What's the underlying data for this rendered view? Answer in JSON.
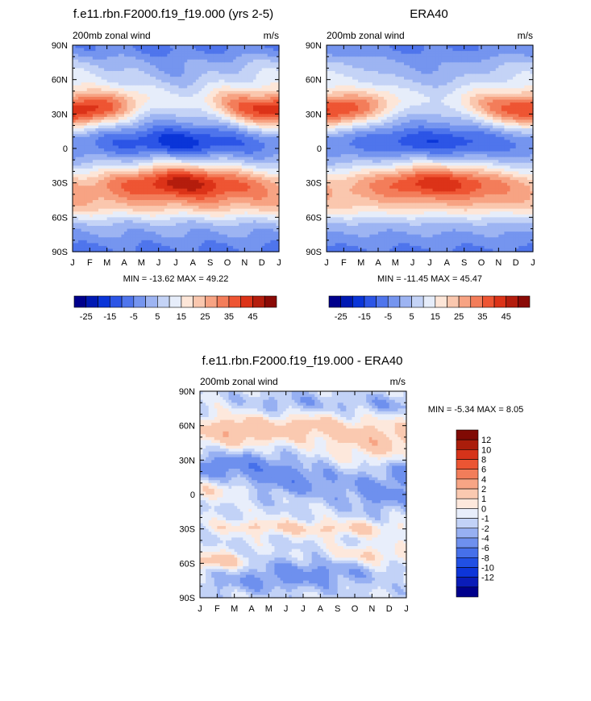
{
  "chart_data": [
    {
      "type": "heatmap",
      "title": "f.e11.rbn.F2000.f19_f19.000 (yrs 2-5)",
      "left_label": "200mb zonal wind",
      "right_label": "m/s",
      "x_ticks": [
        "J",
        "F",
        "M",
        "A",
        "M",
        "J",
        "J",
        "A",
        "S",
        "O",
        "N",
        "D",
        "J"
      ],
      "y_ticks": [
        "90N",
        "60N",
        "30N",
        "0",
        "30S",
        "60S",
        "90S"
      ],
      "stats_text": "MIN = -13.62 MAX =  49.22",
      "min": -13.62,
      "max": 49.22,
      "colorbar": {
        "orientation": "horizontal",
        "labels": [
          "-25",
          "-15",
          "-5",
          "5",
          "15",
          "25",
          "35",
          "45"
        ],
        "levels": [
          -30,
          -25,
          -20,
          -15,
          -10,
          -5,
          0,
          5,
          10,
          15,
          20,
          25,
          30,
          35,
          40,
          45,
          50
        ]
      },
      "features": [
        {
          "month": 0.5,
          "lat": 32,
          "value": 44
        },
        {
          "month": 11.5,
          "lat": 32,
          "value": 44
        },
        {
          "month": 6.5,
          "lat": -30,
          "value": 48
        },
        {
          "month": 6,
          "lat": 7,
          "value": -13
        },
        {
          "month": 6,
          "lat": 62,
          "value": 0
        }
      ]
    },
    {
      "type": "heatmap",
      "title": "ERA40",
      "left_label": "200mb zonal wind",
      "right_label": "m/s",
      "x_ticks": [
        "J",
        "F",
        "M",
        "A",
        "M",
        "J",
        "J",
        "A",
        "S",
        "O",
        "N",
        "D",
        "J"
      ],
      "y_ticks": [
        "90N",
        "60N",
        "30N",
        "0",
        "30S",
        "60S",
        "90S"
      ],
      "stats_text": "MIN = -11.45 MAX =  45.47",
      "min": -11.45,
      "max": 45.47,
      "colorbar": {
        "orientation": "horizontal",
        "labels": [
          "-25",
          "-15",
          "-5",
          "5",
          "15",
          "25",
          "35",
          "45"
        ],
        "levels": [
          -30,
          -25,
          -20,
          -15,
          -10,
          -5,
          0,
          5,
          10,
          15,
          20,
          25,
          30,
          35,
          40,
          45,
          50
        ]
      }
    },
    {
      "type": "heatmap",
      "title": "f.e11.rbn.F2000.f19_f19.000 - ERA40",
      "left_label": "200mb zonal wind",
      "right_label": "m/s",
      "x_ticks": [
        "J",
        "F",
        "M",
        "A",
        "M",
        "J",
        "J",
        "A",
        "S",
        "O",
        "N",
        "D",
        "J"
      ],
      "y_ticks": [
        "90N",
        "60N",
        "30N",
        "0",
        "30S",
        "60S",
        "90S"
      ],
      "stats_text": "MIN =  -5.34 MAX =   8.05",
      "min": -5.34,
      "max": 8.05,
      "colorbar": {
        "orientation": "vertical",
        "labels": [
          "12",
          "10",
          "8",
          "6",
          "4",
          "2",
          "1",
          "0",
          "-1",
          "-2",
          "-4",
          "-6",
          "-8",
          "-10",
          "-12"
        ],
        "levels": [
          -14,
          -12,
          -10,
          -8,
          -6,
          -4,
          -2,
          -1,
          0,
          1,
          2,
          4,
          6,
          8,
          10,
          12,
          14
        ]
      }
    }
  ],
  "colors": {
    "palette": [
      "#00008c",
      "#0019b3",
      "#0a35d8",
      "#2c55e6",
      "#4f75ec",
      "#7595ef",
      "#9db4f2",
      "#c4d3f6",
      "#e6edfa",
      "#fde6d8",
      "#fac7ae",
      "#f7a383",
      "#f37d5a",
      "#ee5533",
      "#dc3318",
      "#b41d0d",
      "#8a0a06"
    ],
    "diff_palette": [
      "#00008c",
      "#0a1cb8",
      "#0d35d9",
      "#2150e4",
      "#4670ea",
      "#6e90ee",
      "#97b0f2",
      "#c2d2f7",
      "#e8eefb",
      "#fde8dc",
      "#fac9b0",
      "#f7a585",
      "#f27d5a",
      "#eb5533",
      "#d6331a",
      "#aa1d0b",
      "#800a04"
    ]
  }
}
